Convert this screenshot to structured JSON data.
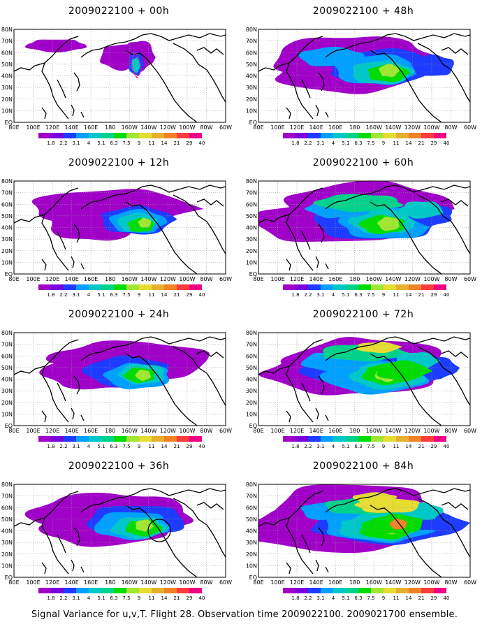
{
  "panels": [
    {
      "title": "2009022100 + 00h",
      "level": 0
    },
    {
      "title": "2009022100 + 48h",
      "level": 4
    },
    {
      "title": "2009022100 + 12h",
      "level": 1
    },
    {
      "title": "2009022100 + 60h",
      "level": 5
    },
    {
      "title": "2009022100 + 24h",
      "level": 2
    },
    {
      "title": "2009022100 + 72h",
      "level": 6
    },
    {
      "title": "2009022100 + 36h",
      "level": 3
    },
    {
      "title": "2009022100 + 84h",
      "level": 7
    }
  ],
  "lat_labels": [
    "80N",
    "70N",
    "60N",
    "50N",
    "40N",
    "30N",
    "20N",
    "10N",
    "EQ"
  ],
  "lon_labels": [
    "80E",
    "100E",
    "120E",
    "140E",
    "160E",
    "180",
    "160W",
    "140W",
    "120W",
    "100W",
    "80W",
    "60W"
  ],
  "colorbar": {
    "labels": [
      "1.8",
      "2.2",
      "3.1",
      "4",
      "5.1",
      "6.3",
      "7.5",
      "9",
      "11",
      "14",
      "21",
      "29",
      "40"
    ],
    "colors": [
      "#a000c8",
      "#7800dc",
      "#1e3cff",
      "#00a0ff",
      "#00c8c8",
      "#00d28c",
      "#00dc00",
      "#a0e632",
      "#e6dc32",
      "#e6af2d",
      "#f08228",
      "#fa3c3c",
      "#f00082"
    ]
  },
  "footer": "Signal Variance for u,v,T. Flight 28. Observation time 2009022100. 2009021700 ensemble."
}
